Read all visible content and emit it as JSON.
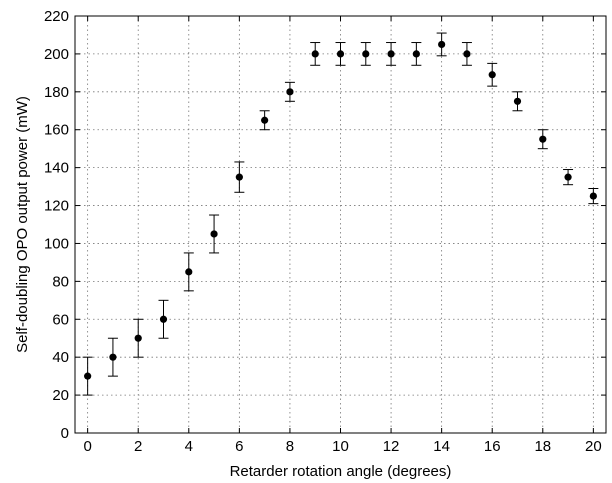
{
  "chart_data": {
    "type": "scatter",
    "title": "",
    "xlabel": "Retarder rotation angle (degrees)",
    "ylabel": "Self-doubling OPO output power (mW)",
    "xlim": [
      -0.5,
      20.5
    ],
    "ylim": [
      0,
      220
    ],
    "xticks": [
      0,
      2,
      4,
      6,
      8,
      10,
      12,
      14,
      16,
      18,
      20
    ],
    "yticks": [
      0,
      20,
      40,
      60,
      80,
      100,
      120,
      140,
      160,
      180,
      200,
      220
    ],
    "grid": true,
    "legend": "none",
    "marker_color": "#000000",
    "series": [
      {
        "x": [
          0,
          1,
          2,
          3,
          4,
          5,
          6,
          7,
          8,
          9,
          10,
          11,
          12,
          13,
          14,
          15,
          16,
          17,
          18,
          19,
          20
        ],
        "y": [
          30,
          40,
          50,
          60,
          85,
          105,
          135,
          165,
          180,
          200,
          200,
          200,
          200,
          200,
          205,
          200,
          189,
          175,
          155,
          135,
          125
        ],
        "error": [
          10,
          10,
          10,
          10,
          10,
          10,
          8,
          5,
          5,
          6,
          6,
          6,
          6,
          6,
          6,
          6,
          6,
          5,
          5,
          4,
          4
        ]
      }
    ]
  }
}
